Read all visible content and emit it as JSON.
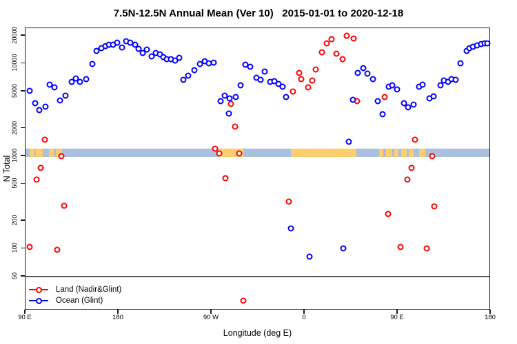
{
  "title": "7.5N-12.5N Annual Mean (Ver 10)   2015-01-01 to 2020-12-18",
  "axes": {
    "x": {
      "label": "Longitude (deg E)",
      "ticks": [
        {
          "value": 90,
          "label": "90 E"
        },
        {
          "value": 180,
          "label": "180"
        },
        {
          "value": 270,
          "label": "90 W"
        },
        {
          "value": 360,
          "label": "0"
        },
        {
          "value": 450,
          "label": "90 E"
        },
        {
          "value": 540,
          "label": "180"
        }
      ]
    },
    "y": {
      "label": "N Total",
      "scale": "log",
      "ticks": [
        {
          "value": 50,
          "label": "50"
        },
        {
          "value": 100,
          "label": "100"
        },
        {
          "value": 200,
          "label": "200"
        },
        {
          "value": 500,
          "label": "500"
        },
        {
          "value": 1000,
          "label": "1000"
        },
        {
          "value": 2000,
          "label": "2000"
        },
        {
          "value": 5000,
          "label": "5000"
        },
        {
          "value": 10000,
          "label": "10000"
        },
        {
          "value": 20000,
          "label": "20000"
        }
      ]
    }
  },
  "legend": {
    "items": [
      {
        "label": "Land (Nadir&Glint)",
        "color": "#ff0000"
      },
      {
        "label": "Ocean (Glint)",
        "color": "#0000ff"
      }
    ]
  },
  "chart_data": {
    "type": "scatter",
    "title": "7.5N-12.5N Annual Mean (Ver 10)   2015-01-01 to 2020-12-18",
    "xlabel": "Longitude (deg E)",
    "ylabel": "N Total",
    "marker": "open-circle",
    "x_axis_note": "axis spans 450 deg of longitude wrapping eastward from 90E; tick sequence 90E,180,90W,0,90E,180; x values >360 correspond to lon-360",
    "xlim": [
      90,
      540
    ],
    "y_scale": "log",
    "ylim": [
      25,
      23000
    ],
    "legend_position": "bottom-left",
    "series": [
      {
        "name": "Land (Nadir&Glint)",
        "color": "#ff0000",
        "points": [
          [
            94.9,
            102
          ],
          [
            101,
            552
          ],
          [
            105.5,
            740
          ],
          [
            109,
            1475
          ],
          [
            121,
            96
          ],
          [
            125.5,
            990
          ],
          [
            128,
            285
          ],
          [
            274,
            1190
          ],
          [
            278,
            1060
          ],
          [
            284,
            565
          ],
          [
            289,
            3600
          ],
          [
            293.5,
            2040
          ],
          [
            297.5,
            1060
          ],
          [
            301.5,
            27
          ],
          [
            345,
            320
          ],
          [
            349,
            4950
          ],
          [
            355,
            7800
          ],
          [
            357.5,
            6700
          ],
          [
            364,
            5400
          ],
          [
            368,
            6470
          ],
          [
            371.5,
            8480
          ],
          [
            377.5,
            12950
          ],
          [
            382,
            16300
          ],
          [
            386.5,
            17900
          ],
          [
            391.5,
            12500
          ],
          [
            397,
            10900
          ],
          [
            401.5,
            19800
          ],
          [
            408,
            18500
          ],
          [
            411,
            3880
          ],
          [
            438,
            4300
          ],
          [
            441,
            234
          ],
          [
            453,
            102
          ],
          [
            460,
            552
          ],
          [
            464,
            731
          ],
          [
            467.5,
            1475
          ],
          [
            478.5,
            99
          ],
          [
            484,
            990
          ],
          [
            486,
            282
          ]
        ]
      },
      {
        "name": "Ocean (Glint)",
        "color": "#0000ff",
        "points": [
          [
            94.5,
            5000
          ],
          [
            100,
            3650
          ],
          [
            104,
            3100
          ],
          [
            110,
            3400
          ],
          [
            114,
            5800
          ],
          [
            118.5,
            5400
          ],
          [
            124,
            3950
          ],
          [
            129.5,
            4400
          ],
          [
            135,
            6200
          ],
          [
            139.5,
            6850
          ],
          [
            143.5,
            6200
          ],
          [
            149.5,
            6650
          ],
          [
            155,
            9800
          ],
          [
            159.5,
            13600
          ],
          [
            164,
            14500
          ],
          [
            168,
            15100
          ],
          [
            171.5,
            15700
          ],
          [
            175.5,
            15800
          ],
          [
            179.5,
            16500
          ],
          [
            184,
            14800
          ],
          [
            188,
            17200
          ],
          [
            192,
            16500
          ],
          [
            196.5,
            15700
          ],
          [
            200,
            14200
          ],
          [
            204,
            12900
          ],
          [
            208,
            14000
          ],
          [
            212.5,
            11700
          ],
          [
            216.5,
            12900
          ],
          [
            220.5,
            12300
          ],
          [
            224,
            11500
          ],
          [
            227.5,
            10900
          ],
          [
            231.5,
            11000
          ],
          [
            235.5,
            10700
          ],
          [
            239.5,
            11400
          ],
          [
            243,
            6600
          ],
          [
            248,
            7300
          ],
          [
            254,
            8300
          ],
          [
            259,
            9750
          ],
          [
            264,
            10450
          ],
          [
            268,
            9850
          ],
          [
            272.5,
            10150
          ],
          [
            279,
            3850
          ],
          [
            283,
            4400
          ],
          [
            288,
            4150
          ],
          [
            287.5,
            2820
          ],
          [
            294,
            4250
          ],
          [
            298.5,
            5700
          ],
          [
            303.5,
            9650
          ],
          [
            308,
            9050
          ],
          [
            314,
            6930
          ],
          [
            318,
            6620
          ],
          [
            322,
            8100
          ],
          [
            327,
            6280
          ],
          [
            331.5,
            6300
          ],
          [
            335,
            5960
          ],
          [
            339,
            5560
          ],
          [
            342.5,
            4260
          ],
          [
            347,
            162
          ],
          [
            365.5,
            81
          ],
          [
            398,
            99
          ],
          [
            403.5,
            1410
          ],
          [
            407,
            4000
          ],
          [
            412,
            7750
          ],
          [
            417.5,
            8850
          ],
          [
            421.5,
            7680
          ],
          [
            426.5,
            6700
          ],
          [
            431,
            3880
          ],
          [
            436,
            2790
          ],
          [
            442,
            5500
          ],
          [
            445.5,
            5730
          ],
          [
            450,
            5140
          ],
          [
            456.5,
            3700
          ],
          [
            460.5,
            3340
          ],
          [
            466,
            3540
          ],
          [
            471,
            5560
          ],
          [
            474.5,
            5830
          ],
          [
            481,
            4150
          ],
          [
            485.5,
            4380
          ],
          [
            492,
            5780
          ],
          [
            495.5,
            6470
          ],
          [
            499,
            6280
          ],
          [
            502.5,
            6700
          ],
          [
            506.5,
            6620
          ],
          [
            511.5,
            9870
          ],
          [
            517,
            13600
          ],
          [
            520,
            14500
          ],
          [
            523.5,
            14900
          ],
          [
            527,
            15400
          ],
          [
            531,
            16000
          ],
          [
            534.5,
            16200
          ],
          [
            537.5,
            16400
          ]
        ]
      }
    ],
    "map_band": {
      "description": "land/ocean geography strip drawn across the plot near N=1000",
      "value_range": [
        965,
        1190
      ],
      "ocean_color": "#a9c0de",
      "land_color": "#fbce6e",
      "land_segments_lon": [
        [
          94.5,
          99.5
        ],
        [
          100.5,
          107.5
        ],
        [
          113.5,
          118
        ],
        [
          120,
          126
        ],
        [
          277.5,
          301.5
        ],
        [
          347,
          410.5
        ],
        [
          432.5,
          436.5
        ],
        [
          439,
          445
        ],
        [
          447,
          451
        ],
        [
          454,
          459.5
        ],
        [
          461,
          466
        ],
        [
          471,
          477.5
        ]
      ]
    }
  }
}
